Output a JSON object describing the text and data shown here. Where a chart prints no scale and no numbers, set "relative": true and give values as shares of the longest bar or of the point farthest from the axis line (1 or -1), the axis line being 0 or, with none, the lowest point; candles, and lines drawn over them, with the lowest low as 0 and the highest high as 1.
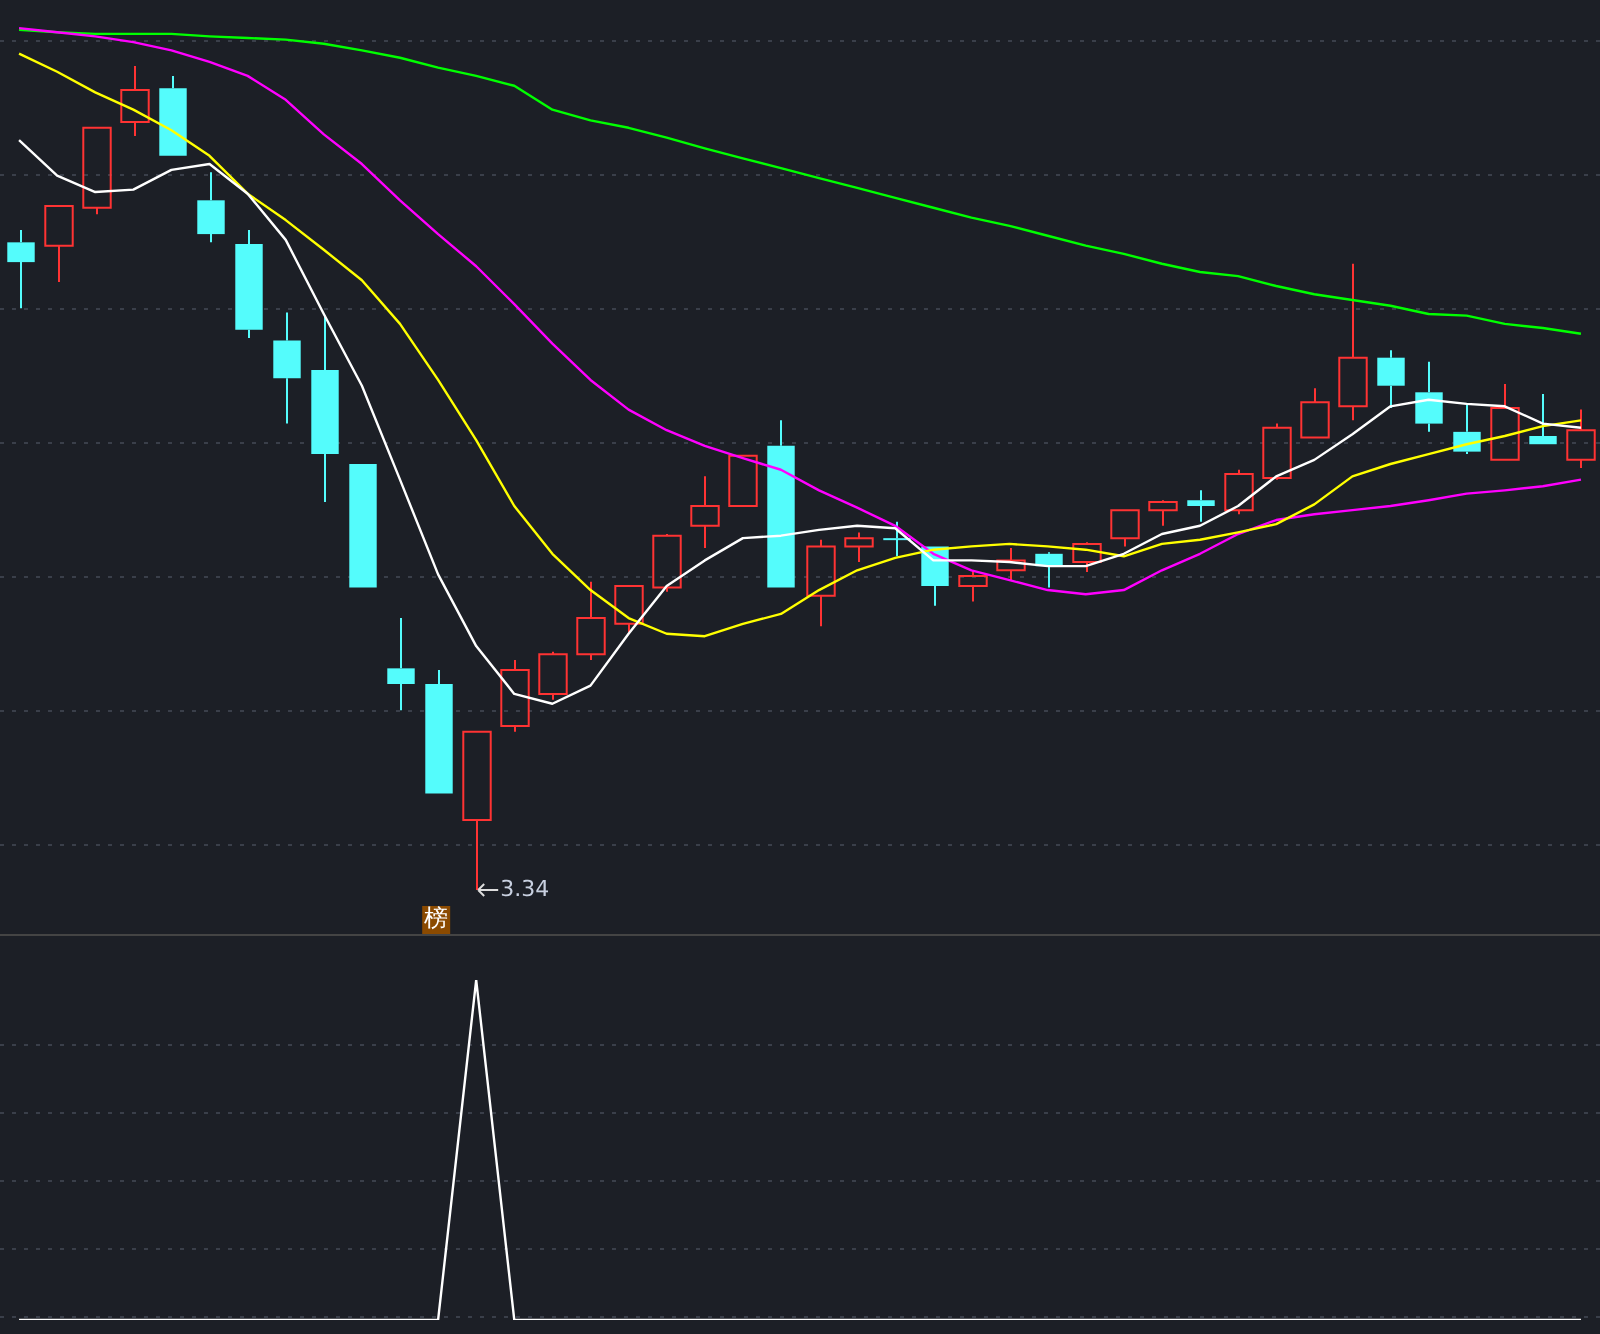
{
  "chart_data": [
    {
      "type": "candlestick",
      "relative": true,
      "grid": true,
      "legend": false,
      "categories": [
        null,
        null,
        null,
        null,
        null,
        null,
        null,
        null,
        null,
        null,
        null,
        null,
        null,
        null,
        null,
        null,
        null,
        null,
        null,
        null,
        null,
        null,
        null,
        null,
        null,
        null,
        null,
        null,
        null,
        null,
        null,
        null,
        null,
        null,
        null,
        null,
        null,
        null,
        null,
        null,
        null,
        null
      ],
      "ohlc": [
        [
          0.786,
          0.801,
          0.706,
          0.762
        ],
        [
          0.782,
          0.83,
          0.738,
          0.83
        ],
        [
          0.828,
          0.925,
          0.82,
          0.925
        ],
        [
          0.932,
          1,
          0.915,
          0.971
        ],
        [
          0.973,
          0.988,
          0.891,
          0.891
        ],
        [
          0.837,
          0.871,
          0.786,
          0.796
        ],
        [
          0.784,
          0.801,
          0.67,
          0.68
        ],
        [
          0.667,
          0.701,
          0.566,
          0.621
        ],
        [
          0.631,
          0.697,
          0.471,
          0.529
        ],
        [
          0.517,
          0.517,
          0.367,
          0.367
        ],
        [
          0.269,
          0.33,
          0.218,
          0.25
        ],
        [
          0.25,
          0.267,
          0.117,
          0.117
        ],
        [
          0.085,
          0.192,
          0,
          0.192
        ],
        [
          0.199,
          0.279,
          0.192,
          0.267
        ],
        [
          0.238,
          0.289,
          0.231,
          0.286
        ],
        [
          0.286,
          0.374,
          0.279,
          0.33
        ],
        [
          0.323,
          0.369,
          0.313,
          0.369
        ],
        [
          0.367,
          0.432,
          0.362,
          0.43
        ],
        [
          0.442,
          0.502,
          0.415,
          0.466
        ],
        [
          0.466,
          0.527,
          0.466,
          0.527
        ],
        [
          0.539,
          0.57,
          0.367,
          0.367
        ],
        [
          0.357,
          0.425,
          0.32,
          0.417
        ],
        [
          0.417,
          0.434,
          0.398,
          0.427
        ],
        [
          0.427,
          0.447,
          0.405,
          0.425
        ],
        [
          0.417,
          0.417,
          0.345,
          0.369
        ],
        [
          0.369,
          0.388,
          0.35,
          0.381
        ],
        [
          0.388,
          0.415,
          0.376,
          0.4
        ],
        [
          0.408,
          0.41,
          0.367,
          0.393
        ],
        [
          0.398,
          0.422,
          0.386,
          0.42
        ],
        [
          0.427,
          0.461,
          0.417,
          0.461
        ],
        [
          0.461,
          0.473,
          0.442,
          0.471
        ],
        [
          0.473,
          0.485,
          0.447,
          0.466
        ],
        [
          0.461,
          0.51,
          0.456,
          0.505
        ],
        [
          0.5,
          0.566,
          0.498,
          0.561
        ],
        [
          0.549,
          0.609,
          0.549,
          0.592
        ],
        [
          0.587,
          0.76,
          0.57,
          0.646
        ],
        [
          0.646,
          0.655,
          0.585,
          0.612
        ],
        [
          0.604,
          0.641,
          0.556,
          0.566
        ],
        [
          0.556,
          0.59,
          0.529,
          0.532
        ],
        [
          0.522,
          0.614,
          0.522,
          0.585
        ],
        [
          0.551,
          0.602,
          0.541,
          0.541
        ],
        [
          0.522,
          0.583,
          0.512,
          0.558
        ]
      ],
      "colors": [
        "#54fcfc",
        "#ff3333",
        "#ff3333",
        "#ff3333",
        "#54fcfc",
        "#54fcfc",
        "#54fcfc",
        "#54fcfc",
        "#54fcfc",
        "#54fcfc",
        "#54fcfc",
        "#54fcfc",
        "#ff3333",
        "#ff3333",
        "#ff3333",
        "#ff3333",
        "#ff3333",
        "#ff3333",
        "#ff3333",
        "#ff3333",
        "#54fcfc",
        "#ff3333",
        "#ff3333",
        "#54fcfc",
        "#54fcfc",
        "#ff3333",
        "#ff3333",
        "#54fcfc",
        "#ff3333",
        "#ff3333",
        "#ff3333",
        "#54fcfc",
        "#ff3333",
        "#ff3333",
        "#ff3333",
        "#ff3333",
        "#54fcfc",
        "#54fcfc",
        "#54fcfc",
        "#ff3333",
        "#54fcfc",
        "#ff3333"
      ],
      "series": [
        {
          "type": "line",
          "color": "#ffffff",
          "values": [
            0.91,
            0.867,
            0.847,
            0.85,
            0.874,
            0.881,
            0.845,
            0.789,
            0.699,
            0.612,
            0.498,
            0.383,
            0.296,
            0.238,
            0.226,
            0.248,
            0.311,
            0.369,
            0.4,
            0.427,
            0.43,
            0.437,
            0.442,
            0.439,
            0.4,
            0.4,
            0.398,
            0.393,
            0.393,
            0.408,
            0.432,
            0.442,
            0.466,
            0.502,
            0.522,
            0.553,
            0.587,
            0.595,
            0.59,
            0.587,
            0.566,
            0.561
          ]
        },
        {
          "type": "line",
          "color": "#ffff00",
          "values": [
            1.015,
            0.993,
            0.968,
            0.947,
            0.922,
            0.891,
            0.845,
            0.813,
            0.777,
            0.74,
            0.687,
            0.619,
            0.546,
            0.466,
            0.408,
            0.364,
            0.33,
            0.311,
            0.308,
            0.323,
            0.335,
            0.364,
            0.388,
            0.403,
            0.413,
            0.417,
            0.42,
            0.417,
            0.413,
            0.405,
            0.42,
            0.425,
            0.434,
            0.444,
            0.468,
            0.502,
            0.517,
            0.529,
            0.541,
            0.551,
            0.563,
            0.57
          ]
        },
        {
          "type": "line",
          "color": "#ff00ff",
          "values": [
            1.046,
            1.041,
            1.036,
            1.029,
            1.019,
            1.005,
            0.988,
            0.959,
            0.917,
            0.881,
            0.837,
            0.796,
            0.757,
            0.711,
            0.663,
            0.619,
            0.583,
            0.558,
            0.539,
            0.524,
            0.51,
            0.485,
            0.464,
            0.442,
            0.408,
            0.388,
            0.376,
            0.364,
            0.359,
            0.364,
            0.388,
            0.408,
            0.432,
            0.449,
            0.456,
            0.461,
            0.466,
            0.473,
            0.481,
            0.485,
            0.49,
            0.498
          ]
        },
        {
          "type": "line",
          "color": "#00ff00",
          "values": [
            1.044,
            1.041,
            1.039,
            1.039,
            1.039,
            1.036,
            1.034,
            1.032,
            1.027,
            1.019,
            1.01,
            0.998,
            0.988,
            0.976,
            0.947,
            0.934,
            0.925,
            0.913,
            0.9,
            0.888,
            0.876,
            0.864,
            0.852,
            0.84,
            0.828,
            0.816,
            0.806,
            0.794,
            0.782,
            0.772,
            0.76,
            0.75,
            0.745,
            0.733,
            0.723,
            0.716,
            0.709,
            0.699,
            0.697,
            0.687,
            0.682,
            0.675
          ]
        }
      ],
      "annotations": [
        "3.34",
        "榜"
      ]
    },
    {
      "type": "line",
      "relative": true,
      "grid": true,
      "legend": false,
      "color": "#ffffff",
      "categories": [
        null,
        null,
        null,
        null,
        null,
        null,
        null,
        null,
        null,
        null,
        null,
        null,
        null,
        null,
        null,
        null,
        null,
        null,
        null,
        null,
        null,
        null,
        null,
        null,
        null,
        null,
        null,
        null,
        null,
        null,
        null,
        null,
        null,
        null,
        null,
        null,
        null,
        null,
        null,
        null,
        null,
        null
      ],
      "values": [
        0,
        0,
        0,
        0,
        0,
        0,
        0,
        0,
        0,
        0,
        0,
        0,
        1,
        0,
        0,
        0,
        0,
        0,
        0,
        0,
        0,
        0,
        0,
        0,
        0,
        0,
        0,
        0,
        0,
        0,
        0,
        0,
        0,
        0,
        0,
        0,
        0,
        0,
        0,
        0,
        0,
        0
      ]
    }
  ]
}
